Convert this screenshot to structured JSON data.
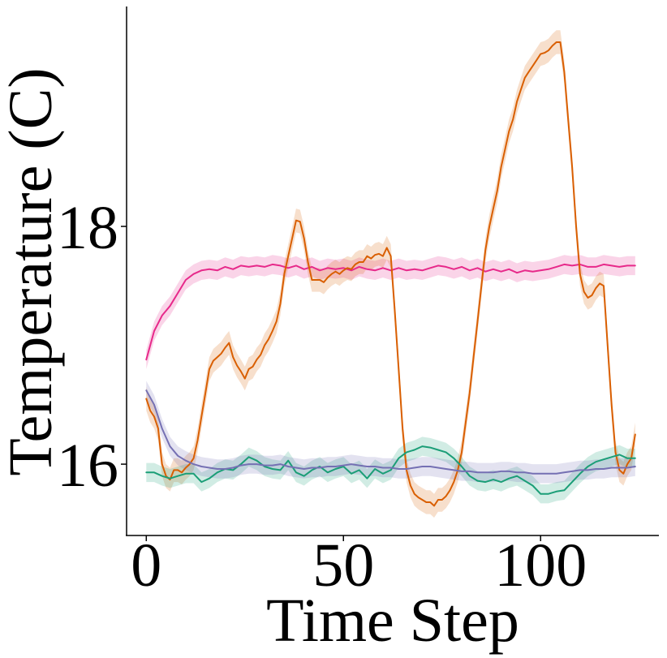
{
  "chart_data": {
    "type": "line",
    "title": "",
    "xlabel": "Time Step",
    "ylabel": "Temperature (C)",
    "xlim": [
      -5,
      130
    ],
    "ylim": [
      15.4,
      19.85
    ],
    "xticks": [
      0,
      50,
      100
    ],
    "xtick_labels": [
      "0",
      "50",
      "100"
    ],
    "yticks": [
      16,
      18
    ],
    "ytick_labels": [
      "16",
      "18"
    ],
    "grid": false,
    "legend": "none",
    "series": [
      {
        "name": "pink",
        "color": "#e7298a",
        "band": 0.08,
        "points": [
          [
            0,
            16.88
          ],
          [
            2,
            17.12
          ],
          [
            4,
            17.25
          ],
          [
            6,
            17.33
          ],
          [
            8,
            17.44
          ],
          [
            10,
            17.55
          ],
          [
            12,
            17.6
          ],
          [
            14,
            17.63
          ],
          [
            16,
            17.64
          ],
          [
            18,
            17.63
          ],
          [
            20,
            17.66
          ],
          [
            22,
            17.64
          ],
          [
            24,
            17.67
          ],
          [
            26,
            17.66
          ],
          [
            28,
            17.67
          ],
          [
            30,
            17.66
          ],
          [
            32,
            17.68
          ],
          [
            34,
            17.67
          ],
          [
            36,
            17.65
          ],
          [
            38,
            17.67
          ],
          [
            40,
            17.64
          ],
          [
            42,
            17.66
          ],
          [
            44,
            17.63
          ],
          [
            46,
            17.65
          ],
          [
            48,
            17.64
          ],
          [
            50,
            17.65
          ],
          [
            52,
            17.63
          ],
          [
            54,
            17.66
          ],
          [
            56,
            17.64
          ],
          [
            58,
            17.63
          ],
          [
            60,
            17.65
          ],
          [
            62,
            17.63
          ],
          [
            64,
            17.65
          ],
          [
            66,
            17.63
          ],
          [
            68,
            17.64
          ],
          [
            70,
            17.63
          ],
          [
            72,
            17.65
          ],
          [
            74,
            17.67
          ],
          [
            76,
            17.66
          ],
          [
            78,
            17.64
          ],
          [
            80,
            17.66
          ],
          [
            82,
            17.63
          ],
          [
            84,
            17.65
          ],
          [
            86,
            17.62
          ],
          [
            88,
            17.64
          ],
          [
            90,
            17.62
          ],
          [
            92,
            17.64
          ],
          [
            94,
            17.61
          ],
          [
            96,
            17.63
          ],
          [
            98,
            17.62
          ],
          [
            100,
            17.63
          ],
          [
            102,
            17.64
          ],
          [
            104,
            17.66
          ],
          [
            106,
            17.68
          ],
          [
            108,
            17.67
          ],
          [
            110,
            17.68
          ],
          [
            112,
            17.66
          ],
          [
            114,
            17.66
          ],
          [
            116,
            17.68
          ],
          [
            118,
            17.67
          ],
          [
            120,
            17.66
          ],
          [
            122,
            17.67
          ],
          [
            124,
            17.67
          ]
        ]
      },
      {
        "name": "orange",
        "color": "#d95f02",
        "band": 0.1,
        "points": [
          [
            0,
            16.55
          ],
          [
            1,
            16.45
          ],
          [
            2,
            16.4
          ],
          [
            3,
            16.3
          ],
          [
            4,
            16.0
          ],
          [
            5,
            15.9
          ],
          [
            6,
            15.87
          ],
          [
            7,
            15.95
          ],
          [
            8,
            15.95
          ],
          [
            9,
            15.93
          ],
          [
            10,
            15.97
          ],
          [
            11,
            16.0
          ],
          [
            12,
            16.05
          ],
          [
            13,
            16.2
          ],
          [
            14,
            16.4
          ],
          [
            15,
            16.6
          ],
          [
            16,
            16.8
          ],
          [
            17,
            16.87
          ],
          [
            18,
            16.9
          ],
          [
            19,
            16.93
          ],
          [
            20,
            16.98
          ],
          [
            21,
            17.02
          ],
          [
            22,
            16.9
          ],
          [
            23,
            16.83
          ],
          [
            24,
            16.78
          ],
          [
            25,
            16.72
          ],
          [
            26,
            16.8
          ],
          [
            27,
            16.82
          ],
          [
            28,
            16.88
          ],
          [
            29,
            16.92
          ],
          [
            30,
            17.0
          ],
          [
            31,
            17.05
          ],
          [
            32,
            17.12
          ],
          [
            33,
            17.2
          ],
          [
            34,
            17.35
          ],
          [
            35,
            17.6
          ],
          [
            36,
            17.75
          ],
          [
            37,
            17.9
          ],
          [
            38,
            18.05
          ],
          [
            39,
            18.04
          ],
          [
            40,
            17.9
          ],
          [
            41,
            17.7
          ],
          [
            42,
            17.55
          ],
          [
            43,
            17.55
          ],
          [
            44,
            17.55
          ],
          [
            45,
            17.53
          ],
          [
            46,
            17.57
          ],
          [
            47,
            17.6
          ],
          [
            48,
            17.62
          ],
          [
            49,
            17.6
          ],
          [
            50,
            17.63
          ],
          [
            51,
            17.65
          ],
          [
            52,
            17.64
          ],
          [
            53,
            17.68
          ],
          [
            54,
            17.7
          ],
          [
            55,
            17.7
          ],
          [
            56,
            17.75
          ],
          [
            57,
            17.73
          ],
          [
            58,
            17.76
          ],
          [
            59,
            17.77
          ],
          [
            60,
            17.75
          ],
          [
            61,
            17.82
          ],
          [
            62,
            17.75
          ],
          [
            63,
            17.3
          ],
          [
            64,
            16.8
          ],
          [
            65,
            16.3
          ],
          [
            66,
            15.95
          ],
          [
            67,
            15.82
          ],
          [
            68,
            15.75
          ],
          [
            69,
            15.72
          ],
          [
            70,
            15.7
          ],
          [
            71,
            15.68
          ],
          [
            72,
            15.68
          ],
          [
            73,
            15.65
          ],
          [
            74,
            15.7
          ],
          [
            75,
            15.7
          ],
          [
            76,
            15.73
          ],
          [
            77,
            15.78
          ],
          [
            78,
            15.85
          ],
          [
            79,
            15.95
          ],
          [
            80,
            16.1
          ],
          [
            81,
            16.35
          ],
          [
            82,
            16.6
          ],
          [
            83,
            16.9
          ],
          [
            84,
            17.2
          ],
          [
            85,
            17.5
          ],
          [
            86,
            17.8
          ],
          [
            87,
            18.0
          ],
          [
            88,
            18.15
          ],
          [
            89,
            18.3
          ],
          [
            90,
            18.5
          ],
          [
            91,
            18.65
          ],
          [
            92,
            18.8
          ],
          [
            93,
            18.9
          ],
          [
            94,
            19.05
          ],
          [
            95,
            19.15
          ],
          [
            96,
            19.25
          ],
          [
            97,
            19.3
          ],
          [
            98,
            19.35
          ],
          [
            99,
            19.4
          ],
          [
            100,
            19.45
          ],
          [
            101,
            19.46
          ],
          [
            102,
            19.48
          ],
          [
            103,
            19.52
          ],
          [
            104,
            19.55
          ],
          [
            105,
            19.55
          ],
          [
            106,
            19.3
          ],
          [
            107,
            18.9
          ],
          [
            108,
            18.5
          ],
          [
            109,
            18.0
          ],
          [
            110,
            17.6
          ],
          [
            111,
            17.45
          ],
          [
            112,
            17.4
          ],
          [
            113,
            17.42
          ],
          [
            114,
            17.48
          ],
          [
            115,
            17.52
          ],
          [
            116,
            17.5
          ],
          [
            117,
            17.0
          ],
          [
            118,
            16.5
          ],
          [
            119,
            16.1
          ],
          [
            120,
            15.95
          ],
          [
            121,
            15.92
          ],
          [
            122,
            16.0
          ],
          [
            123,
            16.05
          ],
          [
            124,
            16.25
          ]
        ]
      },
      {
        "name": "green",
        "color": "#1b9e77",
        "band": 0.08,
        "points": [
          [
            0,
            15.93
          ],
          [
            2,
            15.93
          ],
          [
            4,
            15.9
          ],
          [
            6,
            15.88
          ],
          [
            8,
            15.9
          ],
          [
            10,
            15.92
          ],
          [
            12,
            15.92
          ],
          [
            14,
            15.85
          ],
          [
            16,
            15.88
          ],
          [
            18,
            15.93
          ],
          [
            20,
            15.96
          ],
          [
            22,
            15.95
          ],
          [
            24,
            16.0
          ],
          [
            26,
            16.06
          ],
          [
            28,
            16.03
          ],
          [
            30,
            15.98
          ],
          [
            32,
            15.96
          ],
          [
            34,
            15.95
          ],
          [
            36,
            16.03
          ],
          [
            38,
            15.93
          ],
          [
            40,
            15.9
          ],
          [
            42,
            15.95
          ],
          [
            44,
            15.98
          ],
          [
            46,
            15.93
          ],
          [
            48,
            15.96
          ],
          [
            50,
            15.98
          ],
          [
            52,
            15.92
          ],
          [
            54,
            15.95
          ],
          [
            56,
            15.88
          ],
          [
            58,
            15.96
          ],
          [
            60,
            15.92
          ],
          [
            62,
            15.95
          ],
          [
            64,
            16.05
          ],
          [
            66,
            16.1
          ],
          [
            68,
            16.12
          ],
          [
            70,
            16.15
          ],
          [
            72,
            16.14
          ],
          [
            74,
            16.12
          ],
          [
            76,
            16.1
          ],
          [
            78,
            16.05
          ],
          [
            80,
            15.98
          ],
          [
            82,
            15.9
          ],
          [
            84,
            15.86
          ],
          [
            86,
            15.85
          ],
          [
            88,
            15.87
          ],
          [
            90,
            15.85
          ],
          [
            92,
            15.88
          ],
          [
            94,
            15.9
          ],
          [
            96,
            15.86
          ],
          [
            98,
            15.82
          ],
          [
            100,
            15.75
          ],
          [
            102,
            15.75
          ],
          [
            104,
            15.77
          ],
          [
            106,
            15.78
          ],
          [
            108,
            15.85
          ],
          [
            110,
            15.92
          ],
          [
            112,
            15.98
          ],
          [
            114,
            16.02
          ],
          [
            116,
            16.04
          ],
          [
            118,
            16.06
          ],
          [
            120,
            16.08
          ],
          [
            122,
            16.05
          ],
          [
            124,
            16.05
          ]
        ]
      },
      {
        "name": "purple",
        "color": "#7570b3",
        "band": 0.08,
        "points": [
          [
            0,
            16.62
          ],
          [
            2,
            16.5
          ],
          [
            4,
            16.3
          ],
          [
            6,
            16.15
          ],
          [
            8,
            16.07
          ],
          [
            10,
            16.03
          ],
          [
            12,
            16.0
          ],
          [
            14,
            15.98
          ],
          [
            16,
            15.97
          ],
          [
            18,
            15.96
          ],
          [
            20,
            15.96
          ],
          [
            22,
            15.97
          ],
          [
            24,
            15.99
          ],
          [
            26,
            16.0
          ],
          [
            28,
            16.0
          ],
          [
            30,
            15.99
          ],
          [
            32,
            15.99
          ],
          [
            34,
            16.0
          ],
          [
            36,
            15.98
          ],
          [
            38,
            15.97
          ],
          [
            40,
            15.96
          ],
          [
            42,
            15.97
          ],
          [
            44,
            15.97
          ],
          [
            46,
            15.98
          ],
          [
            48,
            15.98
          ],
          [
            50,
            15.99
          ],
          [
            52,
            16.0
          ],
          [
            54,
            15.99
          ],
          [
            56,
            15.98
          ],
          [
            58,
            15.98
          ],
          [
            60,
            15.97
          ],
          [
            62,
            15.97
          ],
          [
            64,
            15.96
          ],
          [
            66,
            15.96
          ],
          [
            68,
            15.97
          ],
          [
            70,
            15.98
          ],
          [
            72,
            15.98
          ],
          [
            74,
            15.97
          ],
          [
            76,
            15.96
          ],
          [
            78,
            15.95
          ],
          [
            80,
            15.94
          ],
          [
            82,
            15.94
          ],
          [
            84,
            15.93
          ],
          [
            86,
            15.93
          ],
          [
            88,
            15.93
          ],
          [
            90,
            15.94
          ],
          [
            92,
            15.94
          ],
          [
            94,
            15.93
          ],
          [
            96,
            15.93
          ],
          [
            98,
            15.92
          ],
          [
            100,
            15.92
          ],
          [
            102,
            15.92
          ],
          [
            104,
            15.92
          ],
          [
            106,
            15.93
          ],
          [
            108,
            15.94
          ],
          [
            110,
            15.95
          ],
          [
            112,
            15.95
          ],
          [
            114,
            15.96
          ],
          [
            116,
            15.96
          ],
          [
            118,
            15.97
          ],
          [
            120,
            15.97
          ],
          [
            122,
            15.97
          ],
          [
            124,
            15.98
          ]
        ]
      }
    ]
  }
}
